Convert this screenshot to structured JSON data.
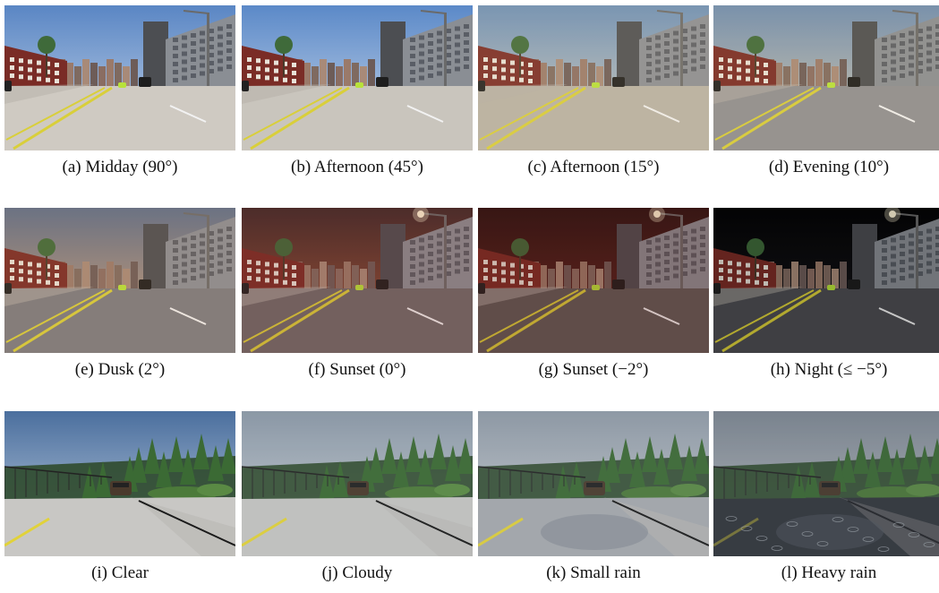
{
  "panels": [
    {
      "caption": "(a) Midday (90°)",
      "scene": "city",
      "sky_top": "#5a86c4",
      "sky_bot": "#c9d8ea",
      "road": "#cfcac2",
      "tint": "#ffffff",
      "tint_opacity": 0,
      "lamp": false
    },
    {
      "caption": "(b) Afternoon (45°)",
      "scene": "city",
      "sky_top": "#5b89c8",
      "sky_bot": "#cfdcec",
      "road": "#c9c5bd",
      "tint": "#ffffff",
      "tint_opacity": 0,
      "lamp": false
    },
    {
      "caption": "(c) Afternoon (15°)",
      "scene": "city",
      "sky_top": "#6b8fb8",
      "sky_bot": "#d6d2c4",
      "road": "#b8b2a6",
      "tint": "#e8c98a",
      "tint_opacity": 0.12,
      "lamp": false
    },
    {
      "caption": "(d) Evening (10°)",
      "scene": "city",
      "sky_top": "#6e8db2",
      "sky_bot": "#d8cdb4",
      "road": "#8f8f92",
      "tint": "#e2b67a",
      "tint_opacity": 0.1,
      "lamp": false
    },
    {
      "caption": "(e) Dusk (2°)",
      "scene": "city",
      "sky_top": "#5e6f8a",
      "sky_bot": "#d8a679",
      "road": "#7c7c80",
      "tint": "#d18c52",
      "tint_opacity": 0.12,
      "lamp": false
    },
    {
      "caption": "(f) Sunset (0°)",
      "scene": "city",
      "sky_top": "#3f2a2a",
      "sky_bot": "#a85a3a",
      "road": "#6e6a6a",
      "tint": "#8a3a2a",
      "tint_opacity": 0.18,
      "lamp": true
    },
    {
      "caption": "(g) Sunset (−2°)",
      "scene": "city",
      "sky_top": "#2a1414",
      "sky_bot": "#6e2a22",
      "road": "#5e5a58",
      "tint": "#6a1e18",
      "tint_opacity": 0.22,
      "lamp": true
    },
    {
      "caption": "(h) Night (≤ −5°)",
      "scene": "city",
      "sky_top": "#050506",
      "sky_bot": "#1a1a20",
      "road": "#4e4e52",
      "tint": "#000000",
      "tint_opacity": 0.18,
      "lamp": true
    },
    {
      "caption": "(i) Clear",
      "scene": "forest",
      "sky_top": "#4b6f9e",
      "sky_bot": "#c6d4e4",
      "road": "#c8c7c4",
      "tint": "#ffffff",
      "tint_opacity": 0,
      "rain": 0
    },
    {
      "caption": "(j) Cloudy",
      "scene": "forest",
      "sky_top": "#8a97a6",
      "sky_bot": "#cfd5db",
      "road": "#c4c4c2",
      "tint": "#9aa2ab",
      "tint_opacity": 0.08,
      "rain": 0
    },
    {
      "caption": "(k) Small rain",
      "scene": "forest",
      "sky_top": "#8f9aa6",
      "sky_bot": "#d2d6da",
      "road": "#a6aaae",
      "tint": "#8c939a",
      "tint_opacity": 0.1,
      "rain": 1
    },
    {
      "caption": "(l) Heavy rain",
      "scene": "forest",
      "sky_top": "#7e8894",
      "sky_bot": "#c4c8cc",
      "road": "#3c4046",
      "tint": "#5a626a",
      "tint_opacity": 0.14,
      "rain": 2
    }
  ]
}
